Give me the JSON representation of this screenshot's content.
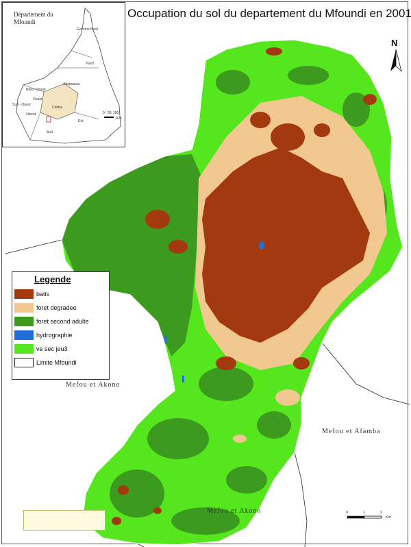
{
  "map": {
    "title": "Occupation du sol du departement du Mfoundi en 2001",
    "north_label": "N",
    "colors": {
      "batis": "#a33a0f",
      "foret_degradee": "#f0c890",
      "foret_second_adulte": "#3c9a1e",
      "hydrographie": "#1f6fd6",
      "ve_sec_jeu3": "#55e61e",
      "limite": "#ffffff"
    }
  },
  "inset": {
    "title": "Département du Mfoundi",
    "regions": [
      "Extrême Nord",
      "Nord",
      "Adamaoua",
      "Nord - Ouest",
      "Ouest",
      "Sud - Ouest",
      "Littoral",
      "Centre",
      "Est",
      "Sud"
    ],
    "scale_labels": [
      "0",
      "50",
      "100"
    ],
    "scale_unit": "Km"
  },
  "legend": {
    "title": "Legende",
    "items": [
      {
        "label": "batis",
        "color": "#a33a0f"
      },
      {
        "label": "foret degradee",
        "color": "#f0c890"
      },
      {
        "label": "foret second adulte",
        "color": "#3c9a1e"
      },
      {
        "label": "hydrographie",
        "color": "#1f6fd6"
      },
      {
        "label": "ve sec jeu3",
        "color": "#55e61e"
      },
      {
        "label": "Limite Mfoundi",
        "color": "#ffffff"
      }
    ]
  },
  "neighbors": {
    "west": "Mefou et Akono",
    "east": "Mefou et Afamba",
    "south": "Mefou et Akono"
  },
  "scale": {
    "ticks": [
      "0",
      "1",
      "2"
    ],
    "unit": "Km"
  }
}
